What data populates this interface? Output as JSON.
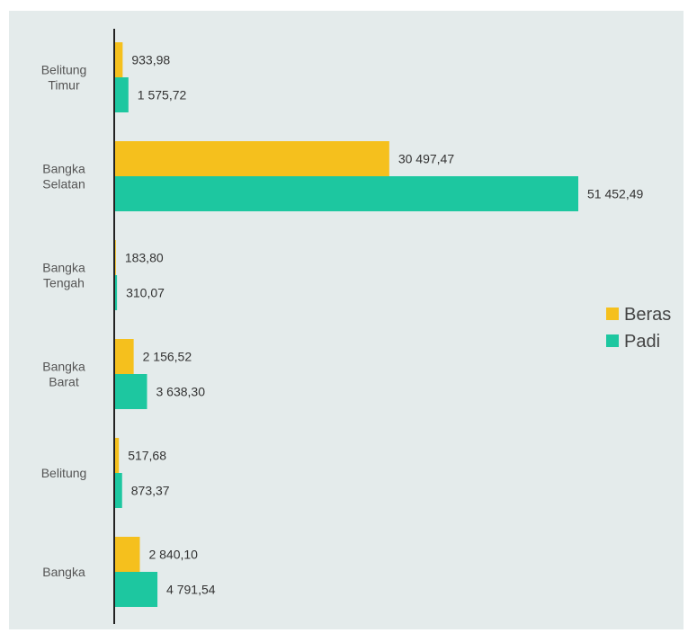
{
  "chart_data": {
    "type": "bar",
    "orientation": "horizontal",
    "categories": [
      "Belitung\nTimur",
      "Bangka\nSelatan",
      "Bangka\nTengah",
      "Bangka\nBarat",
      "Belitung",
      "Bangka"
    ],
    "series": [
      {
        "name": "Beras",
        "color": "#f5c01d",
        "values": [
          933.98,
          30497.47,
          183.8,
          2156.52,
          517.68,
          2840.1
        ],
        "labels": [
          "933,98",
          "30 497,47",
          "183,80",
          "2 156,52",
          "517,68",
          "2 840,10"
        ]
      },
      {
        "name": "Padi",
        "color": "#1dc7a0",
        "values": [
          1575.72,
          51452.49,
          310.07,
          3638.3,
          873.37,
          4791.54
        ],
        "labels": [
          "1 575,72",
          "51 452,49",
          "310,07",
          "3 638,30",
          "873,37",
          "4 791,54"
        ]
      }
    ],
    "xlim": [
      0,
      51452.49
    ],
    "legend_position": "right",
    "grid": false,
    "axis_color": "#222222"
  }
}
